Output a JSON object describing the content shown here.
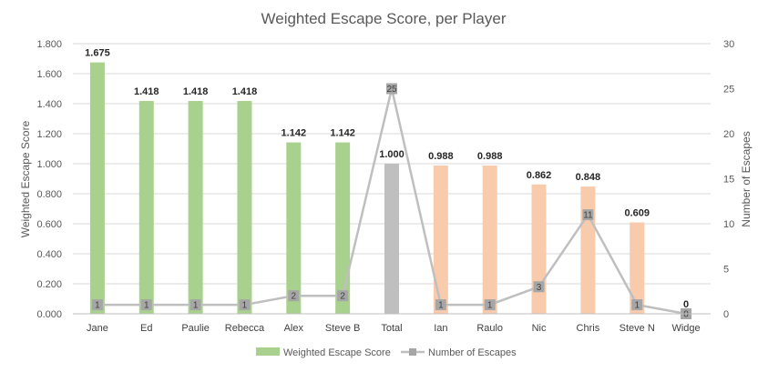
{
  "chart_data": {
    "type": "bar",
    "title": "Weighted Escape Score, per Player",
    "xlabel": "",
    "ylabel": "Weighted Escape Score",
    "y2label": "Number of Escapes",
    "ylim": [
      0,
      1.8
    ],
    "y2lim": [
      0,
      30
    ],
    "yticks": [
      "0.000",
      "0.200",
      "0.400",
      "0.600",
      "0.800",
      "1.000",
      "1.200",
      "1.400",
      "1.600",
      "1.800"
    ],
    "y2ticks": [
      "0",
      "5",
      "10",
      "15",
      "20",
      "25",
      "30"
    ],
    "grid": true,
    "legend_position": "bottom",
    "categories": [
      "Jane",
      "Ed",
      "Paulie",
      "Rebecca",
      "Alex",
      "Steve B",
      "Total",
      "Ian",
      "Raulo",
      "Nic",
      "Chris",
      "Steve N",
      "Widge"
    ],
    "series": [
      {
        "name": "Weighted Escape Score",
        "type": "bar",
        "axis": "left",
        "values": [
          1.675,
          1.418,
          1.418,
          1.418,
          1.142,
          1.142,
          1.0,
          0.988,
          0.988,
          0.862,
          0.848,
          0.609,
          0
        ],
        "labels": [
          "1.675",
          "1.418",
          "1.418",
          "1.418",
          "1.142",
          "1.142",
          "1.000",
          "0.988",
          "0.988",
          "0.862",
          "0.848",
          "0.609",
          "0"
        ],
        "colors": [
          "#a9d18e",
          "#a9d18e",
          "#a9d18e",
          "#a9d18e",
          "#a9d18e",
          "#a9d18e",
          "#bfbfbf",
          "#f8cbad",
          "#f8cbad",
          "#f8cbad",
          "#f8cbad",
          "#f8cbad",
          "#f8cbad"
        ],
        "legend_color": "#a9d18e"
      },
      {
        "name": "Number of Escapes",
        "type": "line",
        "axis": "right",
        "values": [
          1,
          1,
          1,
          1,
          2,
          2,
          25,
          1,
          1,
          3,
          11,
          1,
          0
        ],
        "labels": [
          "1",
          "1",
          "1",
          "1",
          "2",
          "2",
          "25",
          "1",
          "1",
          "3",
          "11",
          "1",
          "0"
        ],
        "color": "#bfbfbf",
        "marker_color": "#a6a6a6"
      }
    ]
  },
  "colors": {
    "grid": "#d9d9d9",
    "axis": "#bfbfbf"
  }
}
